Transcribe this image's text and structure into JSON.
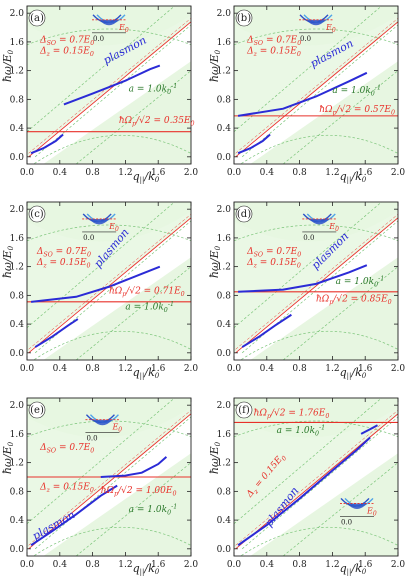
{
  "figure": {
    "ylabel_main": "ħω",
    "ylabel_sub": "E",
    "ylabel_sub0": "0",
    "xlabel_main": "q",
    "xlabel_sub": "||",
    "xlabel_den": "k",
    "xlabel_den0": "0"
  },
  "chart_data": [
    {
      "panel": "(a)",
      "type": "line",
      "xlim": [
        0,
        2.0
      ],
      "ylim": [
        -0.1,
        2.1
      ],
      "xticks": [
        "0.0",
        "0.4",
        "0.8",
        "1.2",
        "1.6",
        "2.0"
      ],
      "yticks": [
        "0.0",
        "0.4",
        "0.8",
        "1.2",
        "1.6",
        "2.0"
      ],
      "annotations": [
        "Δ_SO = 0.7E_0",
        "Δ_z = 0.15E_0",
        "plasmon",
        "a = 1.0k_0^-1",
        "ħΩ_p/√2 = 0.35E_0"
      ],
      "inset": {
        "level_label": "E_0",
        "axis_label": "0.0",
        "fermi_marker_y": 0.2
      },
      "flat_level": 0.35,
      "plasmon_upper": [
        [
          0.45,
          0.73
        ],
        [
          0.8,
          0.88
        ],
        [
          1.2,
          1.06
        ],
        [
          1.5,
          1.22
        ],
        [
          1.62,
          1.27
        ]
      ],
      "plasmon_lower": [
        [
          0.05,
          0.05
        ],
        [
          0.2,
          0.12
        ],
        [
          0.35,
          0.22
        ],
        [
          0.44,
          0.31
        ]
      ],
      "edge_line_slope": 0.94
    },
    {
      "panel": "(b)",
      "type": "line",
      "xlim": [
        0,
        2.0
      ],
      "ylim": [
        -0.1,
        2.1
      ],
      "xticks": [
        "0.0",
        "0.4",
        "0.8",
        "1.2",
        "1.6",
        "2.0"
      ],
      "yticks": [
        "0.0",
        "0.4",
        "0.8",
        "1.2",
        "1.6",
        "2.0"
      ],
      "annotations": [
        "Δ_SO = 0.7E_0",
        "Δ_z = 0.15E_0",
        "plasmon",
        "a = 1.0k_0^-1",
        "ħΩ_p/√2 = 0.57E_0"
      ],
      "inset": {
        "level_label": "E_0",
        "axis_label": "0.0",
        "fermi_marker_y": 0.2
      },
      "flat_level": 0.57,
      "plasmon_upper": [
        [
          0.05,
          0.57
        ],
        [
          0.6,
          0.67
        ],
        [
          1.0,
          0.84
        ],
        [
          1.4,
          1.05
        ],
        [
          1.62,
          1.17
        ]
      ],
      "plasmon_lower": [
        [
          0.05,
          0.05
        ],
        [
          0.2,
          0.12
        ],
        [
          0.35,
          0.22
        ],
        [
          0.44,
          0.31
        ]
      ],
      "edge_line_slope": 0.94
    },
    {
      "panel": "(c)",
      "type": "line",
      "xlim": [
        0,
        2.0
      ],
      "ylim": [
        -0.1,
        2.1
      ],
      "xticks": [
        "0.0",
        "0.4",
        "0.8",
        "1.2",
        "1.6",
        "2.0"
      ],
      "yticks": [
        "0.0",
        "0.4",
        "0.8",
        "1.2",
        "1.6",
        "2.0"
      ],
      "annotations": [
        "Δ_SO = 0.7E_0",
        "Δ_z = 0.15E_0",
        "plasmon",
        "ħΩ_p/√2 = 0.71E_0",
        "a = 1.0k_0^-1"
      ],
      "inset": {
        "level_label": "E_0",
        "axis_label": "0.0",
        "fermi_marker_y": 0.2
      },
      "flat_level": 0.71,
      "plasmon_upper": [
        [
          0.05,
          0.71
        ],
        [
          0.6,
          0.78
        ],
        [
          1.0,
          0.92
        ],
        [
          1.4,
          1.1
        ],
        [
          1.62,
          1.2
        ]
      ],
      "plasmon_lower": [
        [
          0.1,
          0.08
        ],
        [
          0.3,
          0.22
        ],
        [
          0.5,
          0.38
        ],
        [
          0.62,
          0.47
        ]
      ],
      "edge_line_slope": 0.94
    },
    {
      "panel": "(d)",
      "type": "line",
      "xlim": [
        0,
        2.0
      ],
      "ylim": [
        -0.1,
        2.1
      ],
      "xticks": [
        "0.0",
        "0.4",
        "0.8",
        "1.2",
        "1.6",
        "2.0"
      ],
      "yticks": [
        "0.0",
        "0.4",
        "0.8",
        "1.2",
        "1.6",
        "2.0"
      ],
      "annotations": [
        "Δ_SO = 0.7E_0",
        "Δ_z = 0.15E_0",
        "plasmon",
        "a = 1.0k_0^-1",
        "ħΩ_p/√2 = 0.85E_0"
      ],
      "inset": {
        "level_label": "E_0",
        "axis_label": "0.0",
        "fermi_marker_y": 0.2
      },
      "flat_level": 0.85,
      "plasmon_upper": [
        [
          0.05,
          0.85
        ],
        [
          0.6,
          0.88
        ],
        [
          1.0,
          0.96
        ],
        [
          1.4,
          1.12
        ],
        [
          1.62,
          1.22
        ]
      ],
      "plasmon_lower": [
        [
          0.1,
          0.08
        ],
        [
          0.3,
          0.22
        ],
        [
          0.5,
          0.38
        ],
        [
          0.7,
          0.53
        ]
      ],
      "edge_line_slope": 0.94
    },
    {
      "panel": "(e)",
      "type": "line",
      "xlim": [
        0,
        2.0
      ],
      "ylim": [
        -0.1,
        2.1
      ],
      "xticks": [
        "0.0",
        "0.4",
        "0.8",
        "1.2",
        "1.6",
        "2.0"
      ],
      "yticks": [
        "0.0",
        "0.4",
        "0.8",
        "1.2",
        "1.6",
        "2.0"
      ],
      "annotations": [
        "Δ_SO = 0.7E_0",
        "Δ_z = 0.15E_0",
        "plasmon",
        "ħΩ_p/√2 = 1.00E_0",
        "a = 1.0k_0^-1"
      ],
      "inset": {
        "level_label": "E_0",
        "axis_label": "0.0",
        "fermi_marker_y": 0.2
      },
      "flat_level": 1.0,
      "plasmon_upper": [
        [
          0.9,
          1.0
        ],
        [
          1.2,
          1.02
        ],
        [
          1.4,
          1.06
        ],
        [
          1.6,
          1.18
        ],
        [
          1.7,
          1.28
        ]
      ],
      "plasmon_lower": [
        [
          0.05,
          0.05
        ],
        [
          0.3,
          0.24
        ],
        [
          0.6,
          0.48
        ],
        [
          0.9,
          0.74
        ],
        [
          1.1,
          0.88
        ]
      ],
      "edge_line_slope": 0.94
    },
    {
      "panel": "(f)",
      "type": "line",
      "xlim": [
        0,
        2.0
      ],
      "ylim": [
        -0.1,
        2.1
      ],
      "xticks": [
        "0.0",
        "0.4",
        "0.8",
        "1.2",
        "1.6",
        "2.0"
      ],
      "yticks": [
        "0.0",
        "0.4",
        "0.8",
        "1.2",
        "1.6",
        "2.0"
      ],
      "annotations": [
        "ħΩ_p/√2 = 1.76E_0",
        "a = 1.0k_0^-1",
        "Δ_z = 0.15E_0",
        "plasmon"
      ],
      "inset": {
        "level_label": "E_0",
        "axis_label": "0.0",
        "fermi_marker_y": 0.2
      },
      "flat_level": 1.76,
      "plasmon_upper": [
        [
          1.55,
          1.6
        ],
        [
          1.65,
          1.66
        ],
        [
          1.75,
          1.72
        ]
      ],
      "plasmon_lower": [
        [
          0.05,
          0.05
        ],
        [
          0.4,
          0.33
        ],
        [
          0.8,
          0.7
        ],
        [
          1.2,
          1.09
        ],
        [
          1.5,
          1.38
        ],
        [
          1.66,
          1.55
        ]
      ],
      "edge_line_slope": 0.94
    }
  ],
  "colors": {
    "plasmon": "#2b2bd6",
    "red": "#e8312a",
    "green_fill": "#e3f5dc",
    "green_dash": "#7cc57a",
    "inset_band": "#2b52c9"
  }
}
